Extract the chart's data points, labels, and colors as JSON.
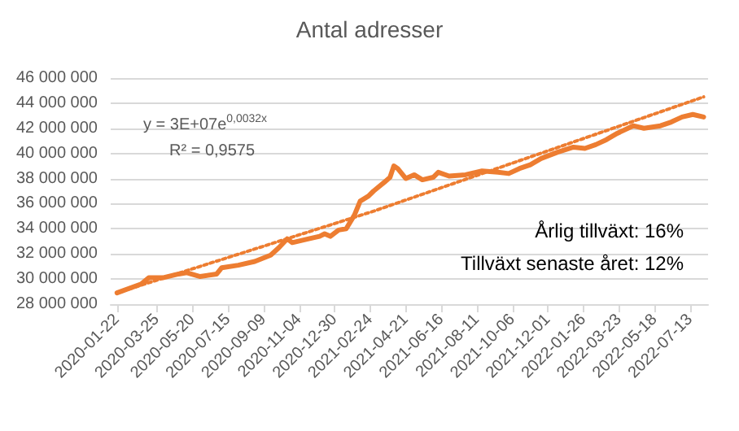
{
  "chart_data": {
    "type": "line",
    "title": "Antal adresser",
    "xlim": [
      "2020-01-12",
      "2022-08-10"
    ],
    "xticks": [
      "2020-01-22",
      "2020-03-25",
      "2020-05-20",
      "2020-07-15",
      "2020-09-09",
      "2020-11-04",
      "2020-12-30",
      "2021-02-24",
      "2021-04-21",
      "2021-06-16",
      "2021-08-11",
      "2021-10-06",
      "2021-12-01",
      "2022-01-26",
      "2022-03-23",
      "2022-05-18",
      "2022-07-13"
    ],
    "ylim": [
      28000000,
      46000000
    ],
    "yticks": [
      {
        "value": 28000000,
        "label": "28 000 000"
      },
      {
        "value": 30000000,
        "label": "30 000 000"
      },
      {
        "value": 32000000,
        "label": "32 000 000"
      },
      {
        "value": 34000000,
        "label": "34 000 000"
      },
      {
        "value": 36000000,
        "label": "36 000 000"
      },
      {
        "value": 38000000,
        "label": "38 000 000"
      },
      {
        "value": 40000000,
        "label": "40 000 000"
      },
      {
        "value": 42000000,
        "label": "42 000 000"
      },
      {
        "value": 44000000,
        "label": "44 000 000"
      },
      {
        "value": 46000000,
        "label": "46 000 000"
      }
    ],
    "grid": "y",
    "marker": "none",
    "series": [
      {
        "color": "#ed7d31",
        "line_style": "solid",
        "x": [
          "2020-01-22",
          "2020-02-29",
          "2020-03-12",
          "2020-04-03",
          "2020-04-28",
          "2020-05-11",
          "2020-06-01",
          "2020-06-27",
          "2020-07-05",
          "2020-07-31",
          "2020-08-26",
          "2020-09-20",
          "2020-10-03",
          "2020-10-16",
          "2020-10-24",
          "2020-11-19",
          "2020-12-06",
          "2020-12-14",
          "2020-12-23",
          "2021-01-05",
          "2021-01-17",
          "2021-01-30",
          "2021-02-08",
          "2021-02-21",
          "2021-03-01",
          "2021-03-18",
          "2021-03-27",
          "2021-04-02",
          "2021-04-08",
          "2021-04-21",
          "2021-05-04",
          "2021-05-17",
          "2021-06-03",
          "2021-06-11",
          "2021-06-28",
          "2021-07-24",
          "2021-08-19",
          "2021-09-13",
          "2021-09-30",
          "2021-10-17",
          "2021-11-03",
          "2021-11-20",
          "2021-12-16",
          "2022-01-10",
          "2022-01-28",
          "2022-02-14",
          "2022-03-03",
          "2022-03-20",
          "2022-04-14",
          "2022-05-01",
          "2022-05-27",
          "2022-06-13",
          "2022-06-30",
          "2022-07-17",
          "2022-08-03"
        ],
        "values": [
          28900000,
          29600000,
          30100000,
          30100000,
          30400000,
          30500000,
          30200000,
          30400000,
          30900000,
          31100000,
          31400000,
          31900000,
          32500000,
          33200000,
          32900000,
          33200000,
          33400000,
          33600000,
          33400000,
          33900000,
          34000000,
          35100000,
          36200000,
          36600000,
          37000000,
          37700000,
          38100000,
          39000000,
          38800000,
          38000000,
          38300000,
          37900000,
          38100000,
          38500000,
          38200000,
          38300000,
          38600000,
          38500000,
          38400000,
          38800000,
          39100000,
          39600000,
          40100000,
          40500000,
          40400000,
          40700000,
          41100000,
          41600000,
          42200000,
          42000000,
          42200000,
          42500000,
          42900000,
          43100000,
          42900000
        ]
      },
      {
        "color": "#ed7d31",
        "line_style": "dotted",
        "x": [
          "2020-01-22",
          "2021-03-01",
          "2022-08-03"
        ],
        "values": [
          28900000,
          35400000,
          44500000
        ]
      }
    ],
    "annotations": [
      "y = 3E+07e$^{0,0032x}$",
      "R² = 0,9575",
      "Årlig tillväxt: 16%",
      "Tillväxt senaste året: 12%"
    ]
  }
}
